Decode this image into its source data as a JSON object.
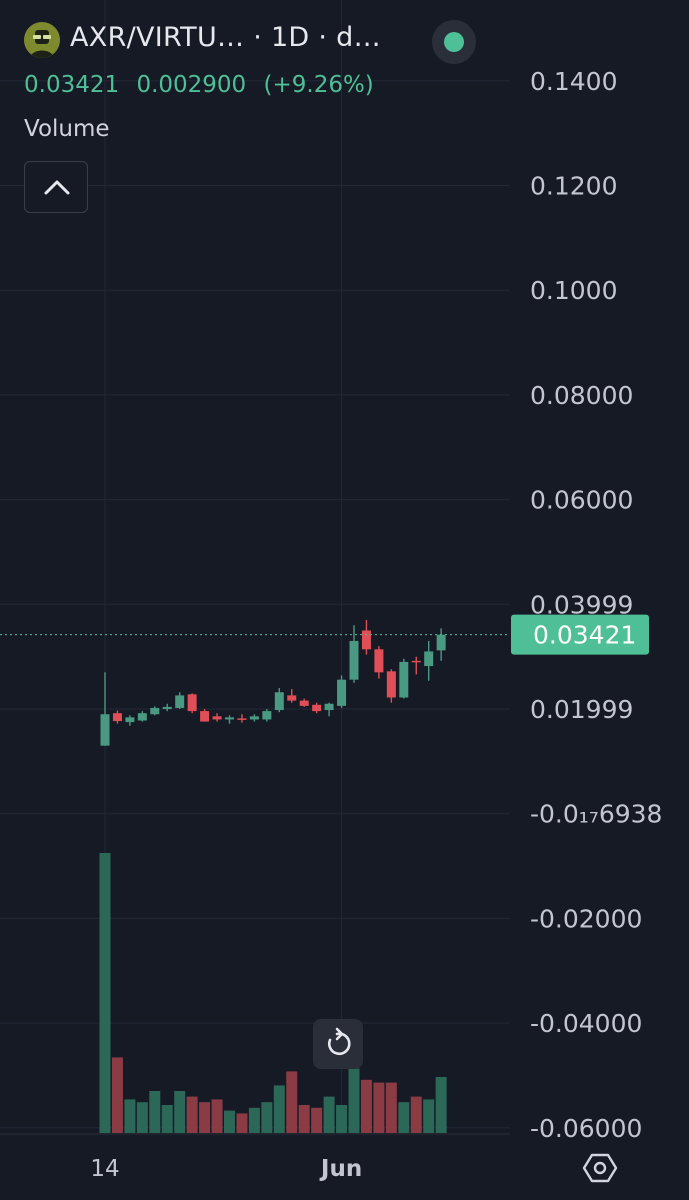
{
  "header": {
    "symbol_title": "AXR/VIRTU… · 1D · d…",
    "avatar_icon": "robot-avatar-icon",
    "status_icon": "status-dot-icon",
    "status_color": "#4fbf98",
    "last_price": "0.03421",
    "change": "0.002900",
    "change_pct": "(+9.26%)",
    "volume_label": "Volume",
    "collapse_icon": "chevron-up-icon"
  },
  "controls": {
    "reset_icon": "reset-icon",
    "settings_icon": "settings-hexagon-icon"
  },
  "chart_data": {
    "type": "candlestick",
    "colors": {
      "up": "#4a9a83",
      "down": "#e04f57",
      "up_volume": "#2c6858",
      "down_volume": "#8a3b44",
      "price_line": "#4fbf98"
    },
    "price_axis": {
      "labels": [
        "0.1400",
        "0.1200",
        "0.1000",
        "0.08000",
        "0.06000",
        "0.03999",
        "0.01999",
        "-0.0₁₇6938",
        "-0.02000",
        "-0.04000",
        "-0.06000"
      ],
      "values": [
        0.14,
        0.12,
        0.1,
        0.08,
        0.06,
        0.04,
        0.02,
        0.0,
        -0.02,
        -0.04,
        -0.06
      ]
    },
    "current_price_label": "0.03421",
    "current_price": 0.03421,
    "x_axis": {
      "labels": [
        "14",
        "Jun"
      ],
      "label_index": [
        0,
        19
      ]
    },
    "grid": true,
    "candles": [
      {
        "o": 0.013,
        "h": 0.027,
        "l": 0.013,
        "c": 0.019,
        "v": 100
      },
      {
        "o": 0.0192,
        "h": 0.0197,
        "l": 0.0172,
        "c": 0.0177,
        "v": 27
      },
      {
        "o": 0.0175,
        "h": 0.0188,
        "l": 0.0168,
        "c": 0.0184,
        "v": 12
      },
      {
        "o": 0.0178,
        "h": 0.0196,
        "l": 0.0176,
        "c": 0.0192,
        "v": 11
      },
      {
        "o": 0.019,
        "h": 0.0205,
        "l": 0.0188,
        "c": 0.0202,
        "v": 15
      },
      {
        "o": 0.02,
        "h": 0.021,
        "l": 0.0196,
        "c": 0.0204,
        "v": 10
      },
      {
        "o": 0.0202,
        "h": 0.0232,
        "l": 0.02,
        "c": 0.0226,
        "v": 15
      },
      {
        "o": 0.0228,
        "h": 0.023,
        "l": 0.0192,
        "c": 0.0196,
        "v": 13
      },
      {
        "o": 0.0196,
        "h": 0.02,
        "l": 0.0176,
        "c": 0.0176,
        "v": 11
      },
      {
        "o": 0.0186,
        "h": 0.0192,
        "l": 0.0176,
        "c": 0.018,
        "v": 12
      },
      {
        "o": 0.018,
        "h": 0.0188,
        "l": 0.0172,
        "c": 0.0184,
        "v": 8
      },
      {
        "o": 0.0182,
        "h": 0.019,
        "l": 0.0174,
        "c": 0.018,
        "v": 7
      },
      {
        "o": 0.018,
        "h": 0.019,
        "l": 0.0176,
        "c": 0.0186,
        "v": 9
      },
      {
        "o": 0.018,
        "h": 0.02,
        "l": 0.0176,
        "c": 0.0196,
        "v": 11
      },
      {
        "o": 0.0198,
        "h": 0.024,
        "l": 0.0194,
        "c": 0.0232,
        "v": 17
      },
      {
        "o": 0.0226,
        "h": 0.0238,
        "l": 0.0212,
        "c": 0.0216,
        "v": 22
      },
      {
        "o": 0.0216,
        "h": 0.022,
        "l": 0.0204,
        "c": 0.0206,
        "v": 10
      },
      {
        "o": 0.0208,
        "h": 0.0212,
        "l": 0.0192,
        "c": 0.0196,
        "v": 9
      },
      {
        "o": 0.0198,
        "h": 0.0212,
        "l": 0.0186,
        "c": 0.021,
        "v": 13
      },
      {
        "o": 0.0206,
        "h": 0.0264,
        "l": 0.0202,
        "c": 0.0256,
        "v": 10
      },
      {
        "o": 0.0256,
        "h": 0.036,
        "l": 0.025,
        "c": 0.033,
        "v": 23
      },
      {
        "o": 0.035,
        "h": 0.037,
        "l": 0.0304,
        "c": 0.0314,
        "v": 19
      },
      {
        "o": 0.0314,
        "h": 0.032,
        "l": 0.0258,
        "c": 0.027,
        "v": 18
      },
      {
        "o": 0.0272,
        "h": 0.0276,
        "l": 0.0212,
        "c": 0.0222,
        "v": 18
      },
      {
        "o": 0.0222,
        "h": 0.0296,
        "l": 0.022,
        "c": 0.029,
        "v": 11
      },
      {
        "o": 0.0292,
        "h": 0.03,
        "l": 0.0266,
        "c": 0.029,
        "v": 13
      },
      {
        "o": 0.0282,
        "h": 0.033,
        "l": 0.0254,
        "c": 0.031,
        "v": 12
      },
      {
        "o": 0.0312,
        "h": 0.0354,
        "l": 0.0292,
        "c": 0.0342,
        "v": 20
      }
    ]
  }
}
